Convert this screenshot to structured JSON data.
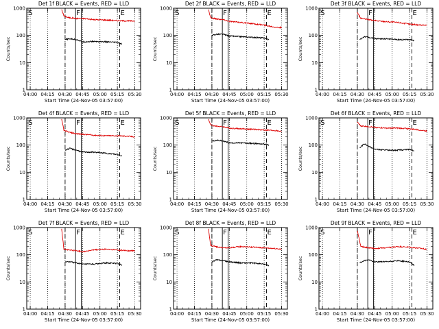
{
  "figure": {
    "rows": 3,
    "cols": 3,
    "common": {
      "ylabel": "Counts/sec",
      "xlabel": "Start Time (24-Nov-05 03:57:00)",
      "x_ticks": [
        "04:00",
        "04:15",
        "04:30",
        "04:45",
        "05:00",
        "05:15",
        "05:30"
      ],
      "y_ticks": [
        "1",
        "10",
        "100",
        "1000"
      ],
      "ylog": true,
      "ylim": [
        1,
        1000
      ],
      "xlim_minutes_after_start": [
        0,
        98
      ],
      "colors": {
        "events": "#000000",
        "lld": "#dd0000",
        "axes": "#000000"
      },
      "markers": [
        {
          "label": "S",
          "x": "03:57:40",
          "style": "solid"
        },
        {
          "label": "F",
          "x": "04:39:00",
          "style": "solid"
        },
        {
          "label": "E",
          "x": "05:17:00",
          "style": "dashed"
        }
      ],
      "dashed_lines": [
        "04:30",
        "05:17"
      ],
      "solid_lines": [
        "04:39",
        "04:44"
      ],
      "dotted_grid_x": [
        "04:00",
        "04:15",
        "04:30",
        "04:45",
        "05:00",
        "05:15",
        "05:30"
      ]
    }
  },
  "chart_data": [
    {
      "type": "line",
      "title": "Det 1f BLACK = Events, RED = LLD",
      "series": [
        {
          "name": "LLD",
          "color": "#dd0000",
          "x": [
            "04:27",
            "04:29",
            "04:33",
            "04:40",
            "04:45",
            "04:55",
            "05:05",
            "05:15",
            "05:25",
            "05:30"
          ],
          "y": [
            900,
            520,
            450,
            420,
            420,
            380,
            370,
            350,
            340,
            340
          ]
        },
        {
          "name": "Events",
          "color": "#000000",
          "x": [
            "04:30",
            "04:34",
            "04:40",
            "04:45",
            "04:55",
            "05:05",
            "05:15",
            "05:19"
          ],
          "y": [
            70,
            75,
            70,
            58,
            60,
            58,
            55,
            48
          ]
        }
      ]
    },
    {
      "type": "line",
      "title": "Det 2f BLACK = Events, RED = LLD",
      "series": [
        {
          "name": "LLD",
          "color": "#dd0000",
          "x": [
            "04:27",
            "04:29",
            "04:33",
            "04:40",
            "04:45",
            "04:55",
            "05:05",
            "05:15",
            "05:25",
            "05:30"
          ],
          "y": [
            900,
            450,
            410,
            380,
            330,
            300,
            270,
            240,
            200,
            195
          ]
        },
        {
          "name": "Events",
          "color": "#000000",
          "x": [
            "04:30",
            "04:34",
            "04:40",
            "04:45",
            "04:55",
            "05:05",
            "05:15",
            "05:19"
          ],
          "y": [
            100,
            110,
            110,
            95,
            90,
            85,
            80,
            70
          ]
        }
      ]
    },
    {
      "type": "line",
      "title": "Det 3f BLACK = Events, RED = LLD",
      "series": [
        {
          "name": "LLD",
          "color": "#dd0000",
          "x": [
            "04:30",
            "04:33",
            "04:40",
            "04:45",
            "04:55",
            "05:05",
            "05:15",
            "05:25",
            "05:30"
          ],
          "y": [
            700,
            420,
            380,
            350,
            320,
            300,
            260,
            240,
            240
          ]
        },
        {
          "name": "Events",
          "color": "#000000",
          "x": [
            "04:32",
            "04:36",
            "04:40",
            "04:45",
            "04:55",
            "05:05",
            "05:15",
            "05:19"
          ],
          "y": [
            70,
            90,
            85,
            75,
            75,
            70,
            70,
            65
          ]
        }
      ]
    },
    {
      "type": "line",
      "title": "Det 4f BLACK = Events, RED = LLD",
      "series": [
        {
          "name": "LLD",
          "color": "#dd0000",
          "x": [
            "04:27",
            "04:29",
            "04:33",
            "04:40",
            "04:45",
            "04:55",
            "05:05",
            "05:15",
            "05:25",
            "05:30"
          ],
          "y": [
            900,
            350,
            300,
            260,
            250,
            230,
            220,
            220,
            210,
            200
          ]
        },
        {
          "name": "Events",
          "color": "#000000",
          "x": [
            "04:30",
            "04:34",
            "04:40",
            "04:45",
            "04:55",
            "05:05",
            "05:15",
            "05:19"
          ],
          "y": [
            65,
            75,
            65,
            55,
            55,
            50,
            45,
            40
          ]
        }
      ]
    },
    {
      "type": "line",
      "title": "Det 5f BLACK = Events, RED = LLD",
      "series": [
        {
          "name": "LLD",
          "color": "#dd0000",
          "x": [
            "04:27",
            "04:29",
            "04:33",
            "04:40",
            "04:45",
            "04:55",
            "05:05",
            "05:15",
            "05:25",
            "05:30"
          ],
          "y": [
            900,
            550,
            500,
            470,
            420,
            400,
            380,
            360,
            340,
            320
          ]
        },
        {
          "name": "Events",
          "color": "#000000",
          "x": [
            "04:30",
            "04:34",
            "04:40",
            "04:45",
            "04:55",
            "05:05",
            "05:15",
            "05:19"
          ],
          "y": [
            140,
            150,
            140,
            120,
            120,
            115,
            110,
            100
          ]
        }
      ]
    },
    {
      "type": "line",
      "title": "Det 6f BLACK = Events, RED = LLD",
      "series": [
        {
          "name": "LLD",
          "color": "#dd0000",
          "x": [
            "04:30",
            "04:33",
            "04:40",
            "04:45",
            "04:55",
            "05:05",
            "05:15",
            "05:25",
            "05:30"
          ],
          "y": [
            700,
            500,
            480,
            450,
            420,
            420,
            400,
            350,
            330
          ]
        },
        {
          "name": "Events",
          "color": "#000000",
          "x": [
            "04:32",
            "04:36",
            "04:40",
            "04:45",
            "04:55",
            "05:05",
            "05:15",
            "05:19"
          ],
          "y": [
            80,
            110,
            90,
            70,
            65,
            65,
            70,
            60
          ]
        }
      ]
    },
    {
      "type": "line",
      "title": "Det 7f BLACK = Events, RED = LLD",
      "series": [
        {
          "name": "LLD",
          "color": "#dd0000",
          "x": [
            "04:27",
            "04:29",
            "04:33",
            "04:40",
            "04:45",
            "04:55",
            "05:05",
            "05:15",
            "05:25",
            "05:30"
          ],
          "y": [
            900,
            160,
            150,
            140,
            130,
            150,
            160,
            150,
            140,
            140
          ]
        },
        {
          "name": "Events",
          "color": "#000000",
          "x": [
            "04:30",
            "04:34",
            "04:40",
            "04:45",
            "04:55",
            "05:05",
            "05:15",
            "05:19"
          ],
          "y": [
            55,
            55,
            50,
            45,
            45,
            50,
            48,
            42
          ]
        }
      ]
    },
    {
      "type": "line",
      "title": "Det 8f BLACK = Events, RED = LLD",
      "series": [
        {
          "name": "LLD",
          "color": "#dd0000",
          "x": [
            "04:27",
            "04:29",
            "04:33",
            "04:40",
            "04:45",
            "04:55",
            "05:05",
            "05:15",
            "05:25",
            "05:30"
          ],
          "y": [
            900,
            220,
            200,
            180,
            180,
            200,
            190,
            180,
            170,
            160
          ]
        },
        {
          "name": "Events",
          "color": "#000000",
          "x": [
            "04:30",
            "04:34",
            "04:40",
            "04:45",
            "04:55",
            "05:05",
            "05:15",
            "05:19"
          ],
          "y": [
            55,
            65,
            60,
            55,
            50,
            50,
            45,
            40
          ]
        }
      ]
    },
    {
      "type": "line",
      "title": "Det 9f BLACK = Events, RED = LLD",
      "series": [
        {
          "name": "LLD",
          "color": "#dd0000",
          "x": [
            "04:30",
            "04:33",
            "04:40",
            "04:45",
            "04:55",
            "05:05",
            "05:15",
            "05:25",
            "05:30"
          ],
          "y": [
            800,
            200,
            180,
            170,
            180,
            200,
            190,
            170,
            160
          ]
        },
        {
          "name": "Events",
          "color": "#000000",
          "x": [
            "04:32",
            "04:36",
            "04:40",
            "04:45",
            "04:55",
            "05:05",
            "05:15",
            "05:19"
          ],
          "y": [
            50,
            60,
            65,
            55,
            55,
            60,
            55,
            40
          ]
        }
      ]
    }
  ]
}
